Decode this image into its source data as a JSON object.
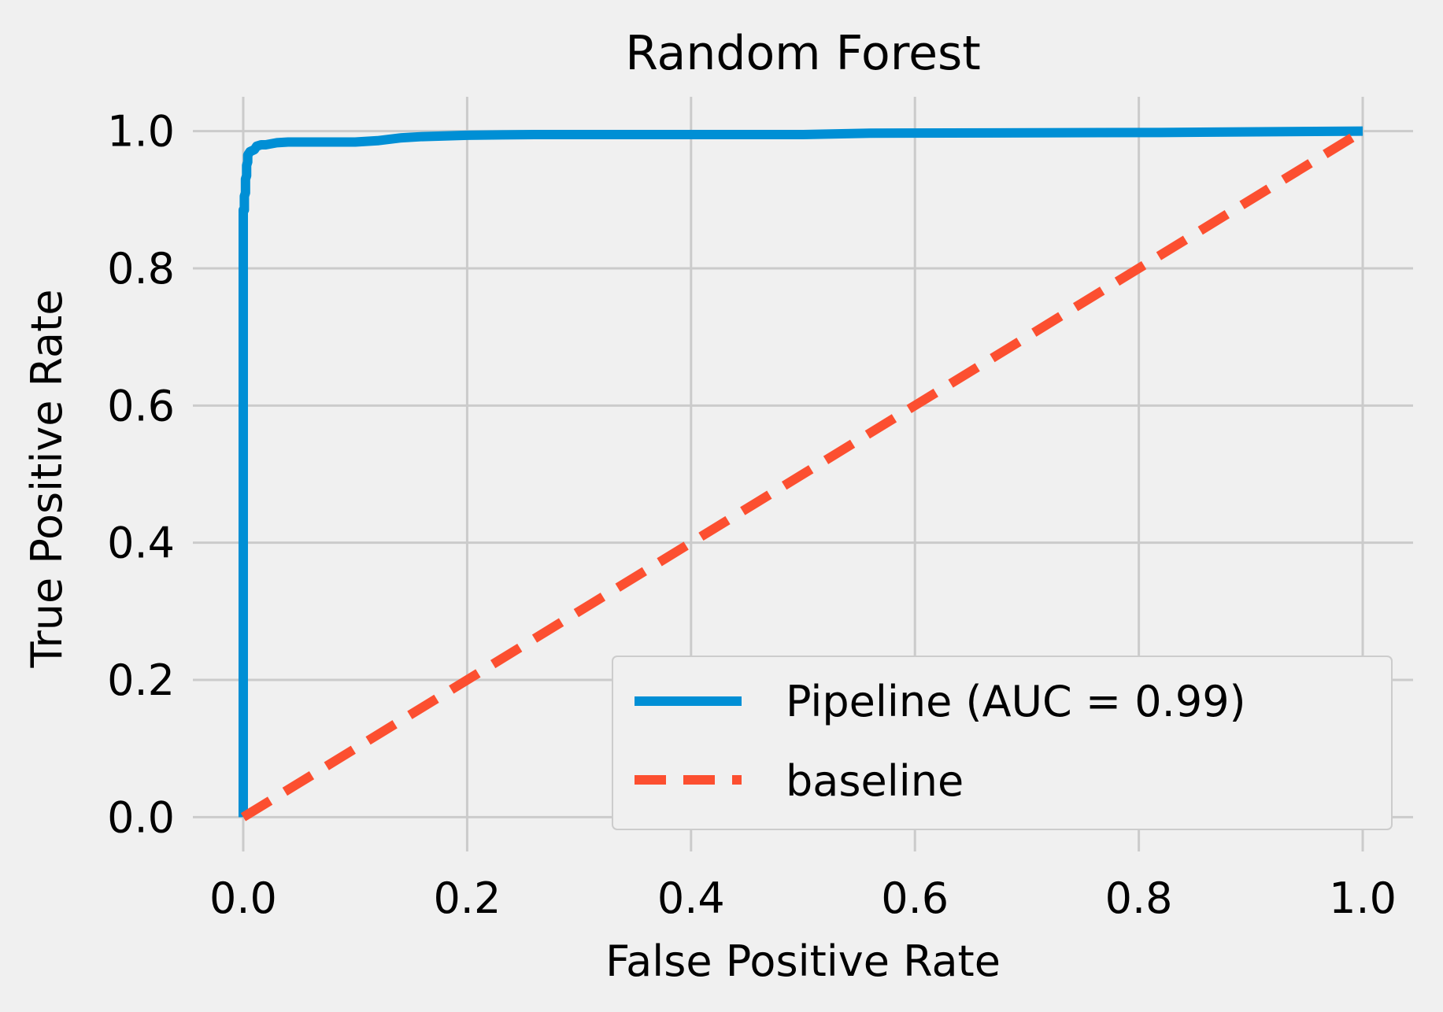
{
  "chart_data": {
    "type": "line",
    "title": "Random Forest",
    "xlabel": "False Positive Rate",
    "ylabel": "True Positive Rate",
    "xlim": [
      -0.045,
      1.045
    ],
    "ylim": [
      -0.05,
      1.05
    ],
    "x_ticks": [
      0.0,
      0.2,
      0.4,
      0.6,
      0.8,
      1.0
    ],
    "y_ticks": [
      0.0,
      0.2,
      0.4,
      0.6,
      0.8,
      1.0
    ],
    "x_tick_labels": [
      "0.0",
      "0.2",
      "0.4",
      "0.6",
      "0.8",
      "1.0"
    ],
    "y_tick_labels": [
      "0.0",
      "0.2",
      "0.4",
      "0.6",
      "0.8",
      "1.0"
    ],
    "grid": true,
    "legend_position": "lower-right",
    "series": [
      {
        "name": "Pipeline (AUC = 0.99)",
        "color": "#008fd5",
        "style": "solid",
        "x": [
          0.0,
          0.0,
          0.001,
          0.001,
          0.002,
          0.002,
          0.003,
          0.003,
          0.004,
          0.004,
          0.006,
          0.01,
          0.012,
          0.016,
          0.02,
          0.03,
          0.04,
          0.06,
          0.1,
          0.12,
          0.14,
          0.16,
          0.2,
          0.26,
          0.4,
          0.5,
          0.56,
          0.82,
          1.0
        ],
        "y": [
          0.0,
          0.885,
          0.885,
          0.905,
          0.91,
          0.93,
          0.935,
          0.95,
          0.955,
          0.965,
          0.97,
          0.973,
          0.978,
          0.98,
          0.98,
          0.983,
          0.984,
          0.984,
          0.984,
          0.986,
          0.99,
          0.992,
          0.994,
          0.995,
          0.995,
          0.995,
          0.997,
          0.998,
          1.0
        ]
      },
      {
        "name": "baseline",
        "color": "#fc4f30",
        "style": "dashed",
        "x": [
          0.0,
          1.0
        ],
        "y": [
          0.0,
          1.0
        ]
      }
    ]
  }
}
